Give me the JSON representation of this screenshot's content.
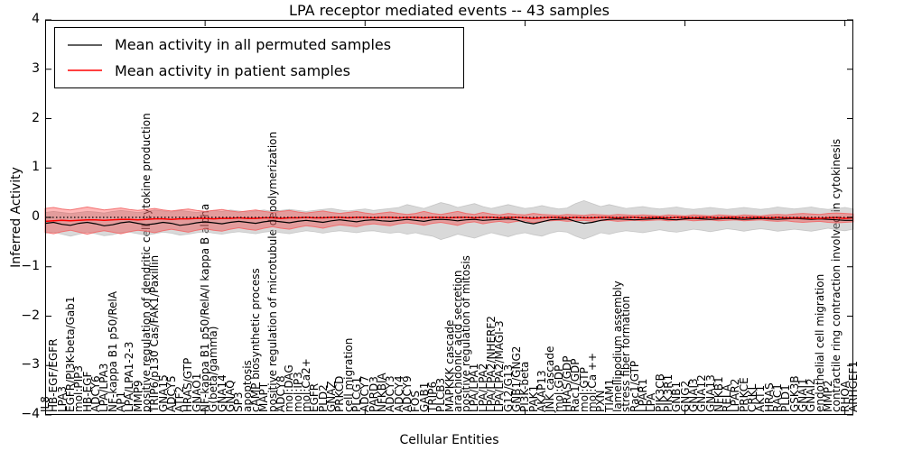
{
  "chart_data": {
    "type": "line",
    "title": "LPA receptor mediated events -- 43 samples",
    "xlabel": "Cellular Entities",
    "ylabel": "Inferred Activity",
    "ylim": [
      -4,
      4
    ],
    "yticks": [
      -4,
      -3,
      -2,
      -1,
      0,
      1,
      2,
      3,
      4
    ],
    "zero_line": 0,
    "grid": false,
    "legend_position": "upper left",
    "n_samples": 43,
    "categories": [
      "IL8",
      "HB-EGF/EGFR",
      "LPA3",
      "EGFR/PI3K-beta/Gab1",
      "mol:PIP3",
      "HB-EGF",
      "ADCY6",
      "LPA/LPA3",
      "NF-kappa B1 p50/RelA",
      "AP1",
      "LPA/LPA1-2-3",
      "MMP9",
      "positive regulation of dendritic cell cytokine production",
      "TRIP6/p130 Cas/FAK1/Paxillin",
      "GNA15",
      "ADCY5",
      "ATF2",
      "HRAS/GTP",
      "GNAO1",
      "NF-kappa B1 p50/RelA/I kappa B alpha",
      "G(beta/gamma)",
      "GNA14",
      "GNAQ",
      "SP3",
      "apoptosis",
      "cAMP biosynthetic process",
      "MAPT",
      "positive regulation of microtubule depolymerization",
      "ADCY8",
      "mol:DAG",
      "mol:IP3",
      "mol:Ca2+",
      "EGFR",
      "PLD2",
      "GNAZ",
      "PRKCD",
      "cell migration",
      "PLCG1",
      "ADCY7",
      "PARD3",
      "NFKBIA",
      "ADCY3",
      "ADCY4",
      "ADCY9",
      "FOS",
      "GAB1",
      "TRIP6",
      "PLCB3",
      "MAPKKK cascade",
      "arachidonic acid secretion",
      "positive regulation of mitosis",
      "LPA/LPA1",
      "LPA/LPA2",
      "LPA/LPA2/NHERF2",
      "LPA/LPA2/MAGI-3",
      "G12/G13",
      "GNB1/GNG2",
      "PI3K-beta",
      "PAK1",
      "AKAP13",
      "JNK cascade",
      "mol:GDP",
      "HRAS/GDP",
      "Rac1/GDP",
      "mol:GTP",
      "mol:Ca ++",
      "PXN",
      "TIAM1",
      "lamellipodium assembly",
      "stress fiber formation",
      "Rac1/GTP",
      "LPAR1",
      "LPA",
      "PIK3CB",
      "PIK3R1",
      "GNB1",
      "GNG2",
      "GNAI3",
      "GNA12",
      "GNA13",
      "NFKB1",
      "RELA",
      "LPAR2",
      "PRKCE",
      "CRKL",
      "AKT1",
      "HRAS",
      "RAC1",
      "PLD1",
      "GSK3B",
      "GNAI1",
      "GNAI2",
      "endothelial cell migration",
      "MMP2",
      "contractile ring contraction involved in cytokinesis",
      "RHOA",
      "ARHGEF1"
    ],
    "series": [
      {
        "name": "Mean activity in all permuted samples",
        "color": "#000000",
        "values": [
          -0.12,
          -0.1,
          -0.14,
          -0.16,
          -0.12,
          -0.1,
          -0.13,
          -0.17,
          -0.15,
          -0.11,
          -0.09,
          -0.12,
          -0.15,
          -0.13,
          -0.1,
          -0.12,
          -0.16,
          -0.14,
          -0.11,
          -0.09,
          -0.11,
          -0.13,
          -0.1,
          -0.08,
          -0.1,
          -0.12,
          -0.09,
          -0.07,
          -0.09,
          -0.11,
          -0.08,
          -0.06,
          -0.08,
          -0.1,
          -0.07,
          -0.05,
          -0.07,
          -0.09,
          -0.06,
          -0.05,
          -0.07,
          -0.08,
          -0.06,
          -0.04,
          -0.06,
          -0.08,
          -0.05,
          -0.04,
          -0.05,
          -0.07,
          -0.05,
          -0.04,
          -0.06,
          -0.05,
          -0.04,
          -0.03,
          -0.05,
          -0.1,
          -0.13,
          -0.09,
          -0.05,
          -0.04,
          -0.03,
          -0.08,
          -0.12,
          -0.1,
          -0.06,
          -0.04,
          -0.03,
          -0.04,
          -0.05,
          -0.04,
          -0.03,
          -0.02,
          -0.04,
          -0.05,
          -0.03,
          -0.02,
          -0.03,
          -0.04,
          -0.03,
          -0.02,
          -0.03,
          -0.04,
          -0.03,
          -0.02,
          -0.03,
          -0.04,
          -0.03,
          -0.02,
          -0.03,
          -0.04,
          -0.03,
          -0.04,
          -0.05,
          -0.06,
          -0.06
        ]
      },
      {
        "name": "Mean activity in patient samples",
        "color": "#ff0000",
        "values": [
          -0.08,
          -0.07,
          -0.06,
          -0.07,
          -0.06,
          -0.05,
          -0.05,
          -0.06,
          -0.05,
          -0.04,
          -0.04,
          -0.05,
          -0.04,
          -0.03,
          -0.03,
          -0.04,
          -0.03,
          -0.03,
          -0.02,
          -0.02,
          -0.03,
          -0.02,
          -0.02,
          -0.01,
          -0.02,
          -0.02,
          -0.01,
          -0.01,
          -0.02,
          -0.01,
          -0.01,
          0.0,
          -0.01,
          -0.01,
          0.0,
          0.0,
          -0.01,
          0.0,
          0.0,
          -0.01,
          0.0,
          0.0,
          -0.01,
          0.0,
          0.0,
          -0.01,
          0.0,
          0.0,
          -0.01,
          0.0,
          0.0,
          -0.01,
          0.0,
          0.0,
          -0.01,
          0.0,
          0.0,
          -0.01,
          -0.02,
          -0.01,
          0.0,
          0.0,
          -0.01,
          0.0,
          -0.01,
          -0.01,
          0.0,
          0.0,
          -0.01,
          0.0,
          0.0,
          -0.01,
          0.0,
          0.0,
          -0.01,
          0.0,
          0.0,
          -0.01,
          0.0,
          0.0,
          -0.01,
          0.0,
          0.0,
          -0.01,
          0.0,
          0.0,
          -0.01,
          0.0,
          -0.01,
          -0.01,
          -0.01,
          -0.02,
          -0.02,
          -0.01,
          -0.01,
          -0.02,
          -0.01
        ]
      }
    ],
    "bands": [
      {
        "name": "permuted samples spread",
        "fill": "#aaaaaa",
        "upper": [
          0.1,
          0.12,
          0.1,
          0.08,
          0.1,
          0.12,
          0.11,
          0.09,
          0.12,
          0.14,
          0.12,
          0.1,
          0.12,
          0.15,
          0.13,
          0.11,
          0.14,
          0.12,
          0.1,
          0.12,
          0.14,
          0.12,
          0.15,
          0.13,
          0.11,
          0.13,
          0.15,
          0.12,
          0.14,
          0.16,
          0.14,
          0.12,
          0.14,
          0.16,
          0.18,
          0.15,
          0.13,
          0.15,
          0.17,
          0.14,
          0.16,
          0.18,
          0.2,
          0.26,
          0.22,
          0.18,
          0.24,
          0.3,
          0.26,
          0.2,
          0.24,
          0.28,
          0.22,
          0.18,
          0.22,
          0.26,
          0.22,
          0.18,
          0.2,
          0.24,
          0.2,
          0.17,
          0.19,
          0.28,
          0.34,
          0.28,
          0.22,
          0.26,
          0.22,
          0.18,
          0.2,
          0.22,
          0.19,
          0.17,
          0.19,
          0.21,
          0.18,
          0.16,
          0.18,
          0.2,
          0.18,
          0.16,
          0.18,
          0.2,
          0.18,
          0.16,
          0.18,
          0.21,
          0.19,
          0.17,
          0.19,
          0.21,
          0.18,
          0.16,
          0.18,
          0.2,
          0.17
        ],
        "lower": [
          -0.32,
          -0.3,
          -0.34,
          -0.38,
          -0.34,
          -0.3,
          -0.33,
          -0.37,
          -0.35,
          -0.31,
          -0.3,
          -0.33,
          -0.36,
          -0.33,
          -0.3,
          -0.32,
          -0.36,
          -0.34,
          -0.31,
          -0.29,
          -0.32,
          -0.34,
          -0.31,
          -0.29,
          -0.31,
          -0.33,
          -0.3,
          -0.28,
          -0.31,
          -0.33,
          -0.3,
          -0.27,
          -0.29,
          -0.32,
          -0.29,
          -0.27,
          -0.29,
          -0.31,
          -0.28,
          -0.27,
          -0.3,
          -0.32,
          -0.3,
          -0.34,
          -0.31,
          -0.35,
          -0.38,
          -0.45,
          -0.4,
          -0.34,
          -0.38,
          -0.42,
          -0.36,
          -0.31,
          -0.35,
          -0.39,
          -0.34,
          -0.31,
          -0.35,
          -0.38,
          -0.32,
          -0.28,
          -0.3,
          -0.38,
          -0.44,
          -0.38,
          -0.31,
          -0.34,
          -0.3,
          -0.27,
          -0.29,
          -0.31,
          -0.28,
          -0.25,
          -0.28,
          -0.3,
          -0.27,
          -0.24,
          -0.26,
          -0.29,
          -0.26,
          -0.23,
          -0.25,
          -0.28,
          -0.25,
          -0.23,
          -0.25,
          -0.28,
          -0.26,
          -0.24,
          -0.26,
          -0.28,
          -0.25,
          -0.22,
          -0.25,
          -0.27,
          -0.24
        ]
      },
      {
        "name": "patient samples spread",
        "fill": "#ff0000",
        "upper": [
          0.18,
          0.2,
          0.17,
          0.15,
          0.18,
          0.21,
          0.18,
          0.15,
          0.17,
          0.19,
          0.16,
          0.14,
          0.16,
          0.18,
          0.15,
          0.13,
          0.15,
          0.17,
          0.14,
          0.12,
          0.14,
          0.16,
          0.13,
          0.11,
          0.13,
          0.15,
          0.12,
          0.1,
          0.12,
          0.14,
          0.11,
          0.09,
          0.11,
          0.13,
          0.1,
          0.08,
          0.1,
          0.12,
          0.09,
          0.07,
          0.09,
          0.11,
          0.08,
          0.06,
          0.08,
          0.12,
          0.08,
          0.06,
          0.09,
          0.12,
          0.08,
          0.06,
          0.1,
          0.07,
          0.05,
          0.08,
          0.06,
          0.05,
          0.08,
          0.06,
          0.05,
          0.04,
          0.06,
          0.05,
          0.04,
          0.06,
          0.05,
          0.04,
          0.06,
          0.05,
          0.04,
          0.05,
          0.04,
          0.03,
          0.05,
          0.04,
          0.03,
          0.05,
          0.04,
          0.03,
          0.05,
          0.04,
          0.03,
          0.05,
          0.04,
          0.03,
          0.05,
          0.06,
          0.05,
          0.07,
          0.08,
          0.07,
          0.06,
          0.08,
          0.09,
          0.08,
          0.07
        ],
        "lower": [
          -0.3,
          -0.33,
          -0.29,
          -0.26,
          -0.3,
          -0.34,
          -0.3,
          -0.27,
          -0.3,
          -0.33,
          -0.29,
          -0.26,
          -0.28,
          -0.31,
          -0.27,
          -0.24,
          -0.27,
          -0.3,
          -0.26,
          -0.23,
          -0.26,
          -0.28,
          -0.24,
          -0.21,
          -0.24,
          -0.26,
          -0.22,
          -0.19,
          -0.22,
          -0.24,
          -0.2,
          -0.17,
          -0.19,
          -0.22,
          -0.18,
          -0.15,
          -0.17,
          -0.19,
          -0.15,
          -0.13,
          -0.15,
          -0.17,
          -0.13,
          -0.11,
          -0.13,
          -0.16,
          -0.12,
          -0.1,
          -0.13,
          -0.16,
          -0.11,
          -0.09,
          -0.13,
          -0.1,
          -0.08,
          -0.11,
          -0.08,
          -0.07,
          -0.11,
          -0.08,
          -0.07,
          -0.06,
          -0.08,
          -0.07,
          -0.06,
          -0.08,
          -0.07,
          -0.06,
          -0.08,
          -0.07,
          -0.06,
          -0.07,
          -0.06,
          -0.05,
          -0.07,
          -0.06,
          -0.05,
          -0.07,
          -0.06,
          -0.05,
          -0.07,
          -0.06,
          -0.05,
          -0.07,
          -0.06,
          -0.05,
          -0.07,
          -0.08,
          -0.07,
          -0.09,
          -0.1,
          -0.09,
          -0.08,
          -0.1,
          -0.11,
          -0.1,
          -0.09
        ]
      }
    ]
  },
  "colors": {
    "background": "#ffffff",
    "axis": "#000000",
    "permuted_line": "#000000",
    "patient_line": "#ff0000",
    "permuted_band_fill": "#aaaaaa",
    "patient_band_fill": "#ff0000",
    "patient_band_edge": "#f26666"
  }
}
